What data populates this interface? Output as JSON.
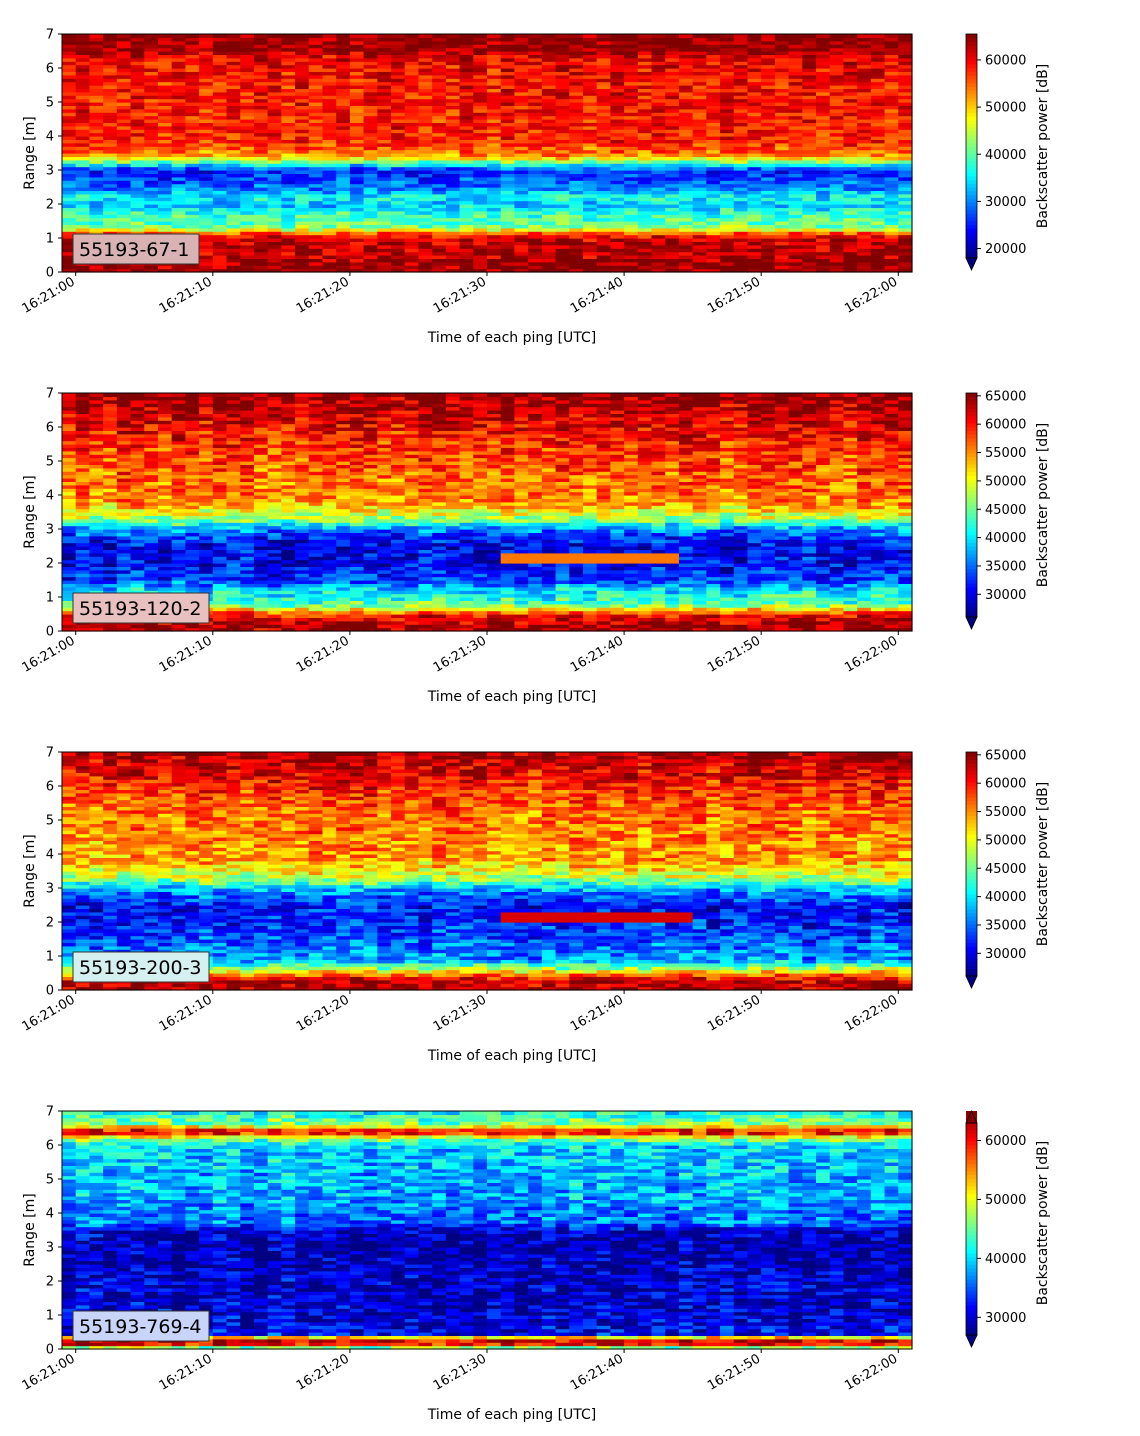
{
  "chart_data": [
    {
      "type": "heatmap",
      "panel_label": "55193-67-1",
      "xlabel": "Time of each ping [UTC]",
      "ylabel": "Range [m]",
      "colorbar_label": "Backscatter power [dB]",
      "colormap": "jet",
      "x_tick_labels": [
        "16:21:00",
        "16:21:10",
        "16:21:20",
        "16:21:30",
        "16:21:40",
        "16:21:50",
        "16:22:00"
      ],
      "x_range_seconds": [
        -1,
        61
      ],
      "ylim": [
        0,
        7
      ],
      "y_ticks": [
        0,
        1,
        2,
        3,
        4,
        5,
        6,
        7
      ],
      "clim": [
        18000,
        65500
      ],
      "colorbar_ticks": [
        20000,
        30000,
        40000,
        50000,
        60000
      ],
      "colorbar_extend": "min",
      "label_box_color": "#d9b3b3",
      "profile": [
        [
          0.0,
          65000
        ],
        [
          0.25,
          64000
        ],
        [
          0.6,
          62500
        ],
        [
          1.0,
          62000
        ],
        [
          1.15,
          55000
        ],
        [
          1.3,
          42000
        ],
        [
          1.7,
          38000
        ],
        [
          2.0,
          33000
        ],
        [
          2.2,
          36000
        ],
        [
          2.5,
          29000
        ],
        [
          3.0,
          25000
        ],
        [
          3.2,
          38000
        ],
        [
          3.4,
          52000
        ],
        [
          3.8,
          58000
        ],
        [
          5.5,
          59000
        ],
        [
          6.3,
          60000
        ],
        [
          6.5,
          64000
        ],
        [
          7.0,
          65000
        ]
      ]
    },
    {
      "type": "heatmap",
      "panel_label": "55193-120-2",
      "xlabel": "Time of each ping [UTC]",
      "ylabel": "Range [m]",
      "colorbar_label": "Backscatter power [dB]",
      "colormap": "jet",
      "x_tick_labels": [
        "16:21:00",
        "16:21:10",
        "16:21:20",
        "16:21:30",
        "16:21:40",
        "16:21:50",
        "16:22:00"
      ],
      "x_range_seconds": [
        -1,
        61
      ],
      "ylim": [
        0,
        7
      ],
      "y_ticks": [
        0,
        1,
        2,
        3,
        4,
        5,
        6,
        7
      ],
      "clim": [
        26000,
        65500
      ],
      "colorbar_ticks": [
        30000,
        35000,
        40000,
        45000,
        50000,
        55000,
        60000,
        65000
      ],
      "colorbar_extend": "min",
      "label_box_color": "#e8c0c0",
      "profile": [
        [
          0.0,
          64000
        ],
        [
          0.3,
          63000
        ],
        [
          0.5,
          60000
        ],
        [
          0.8,
          44000
        ],
        [
          1.2,
          40000
        ],
        [
          1.5,
          33000
        ],
        [
          2.0,
          31000
        ],
        [
          2.5,
          30000
        ],
        [
          3.0,
          36000
        ],
        [
          3.3,
          47000
        ],
        [
          3.8,
          55000
        ],
        [
          5.5,
          59000
        ],
        [
          6.2,
          62000
        ],
        [
          7.0,
          65000
        ]
      ],
      "feature": {
        "t_range": [
          31,
          44
        ],
        "depth": 2.15,
        "value": 56000
      }
    },
    {
      "type": "heatmap",
      "panel_label": "55193-200-3",
      "xlabel": "Time of each ping [UTC]",
      "ylabel": "Range [m]",
      "colorbar_label": "Backscatter power [dB]",
      "colormap": "jet",
      "x_tick_labels": [
        "16:21:00",
        "16:21:10",
        "16:21:20",
        "16:21:30",
        "16:21:40",
        "16:21:50",
        "16:22:00"
      ],
      "x_range_seconds": [
        -1,
        61
      ],
      "ylim": [
        0,
        7
      ],
      "y_ticks": [
        0,
        1,
        2,
        3,
        4,
        5,
        6,
        7
      ],
      "clim": [
        26000,
        65500
      ],
      "colorbar_ticks": [
        30000,
        35000,
        40000,
        45000,
        50000,
        55000,
        60000,
        65000
      ],
      "colorbar_extend": "min",
      "label_box_color": "#d4f0f0",
      "profile": [
        [
          0.0,
          64000
        ],
        [
          0.25,
          63000
        ],
        [
          0.4,
          59000
        ],
        [
          0.6,
          49000
        ],
        [
          0.9,
          37000
        ],
        [
          1.5,
          34000
        ],
        [
          2.0,
          32000
        ],
        [
          2.5,
          31000
        ],
        [
          3.0,
          38000
        ],
        [
          3.3,
          48000
        ],
        [
          3.8,
          54000
        ],
        [
          5.5,
          57000
        ],
        [
          6.3,
          61000
        ],
        [
          7.0,
          64000
        ]
      ],
      "feature": {
        "t_range": [
          31,
          45
        ],
        "depth": 2.15,
        "value": 62000
      }
    },
    {
      "type": "heatmap",
      "panel_label": "55193-769-4",
      "xlabel": "Time of each ping [UTC]",
      "ylabel": "Range [m]",
      "colorbar_label": "Backscatter power [dB]",
      "colormap": "jet",
      "x_tick_labels": [
        "16:21:00",
        "16:21:10",
        "16:21:20",
        "16:21:30",
        "16:21:40",
        "16:21:50",
        "16:22:00"
      ],
      "x_range_seconds": [
        -1,
        61
      ],
      "ylim": [
        0,
        7
      ],
      "y_ticks": [
        0,
        1,
        2,
        3,
        4,
        5,
        6,
        7
      ],
      "clim": [
        27000,
        65000
      ],
      "colorbar_ticks": [
        30000,
        40000,
        50000,
        60000
      ],
      "colorbar_extend": "both",
      "label_box_color": "#c8d4f8",
      "profile": [
        [
          0.0,
          40000
        ],
        [
          0.15,
          60000
        ],
        [
          0.3,
          62000
        ],
        [
          0.45,
          32000
        ],
        [
          1.0,
          30000
        ],
        [
          2.0,
          30000
        ],
        [
          3.0,
          28500
        ],
        [
          3.5,
          30000
        ],
        [
          3.7,
          36000
        ],
        [
          4.5,
          38000
        ],
        [
          5.5,
          39000
        ],
        [
          6.0,
          40000
        ],
        [
          6.2,
          47000
        ],
        [
          6.4,
          63000
        ],
        [
          6.6,
          47000
        ],
        [
          7.0,
          41000
        ]
      ]
    }
  ]
}
